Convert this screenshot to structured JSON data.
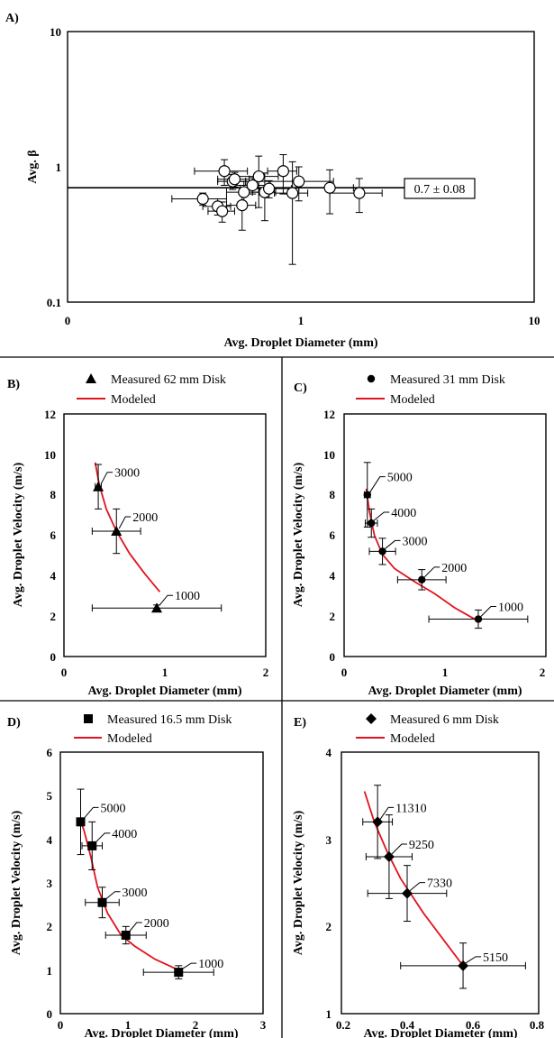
{
  "panels": [
    {
      "id": "A",
      "letter": "A)",
      "xlabel": "Avg. Droplet Diameter (mm)",
      "ylabel": "Avg. β",
      "xticklabels": [
        "0",
        "1",
        "10"
      ],
      "yticklabels": [
        "10",
        "1",
        "0.1"
      ],
      "fit_label": "0.7 ± 0.08"
    },
    {
      "id": "B",
      "letter": "B)",
      "xlabel": "Avg. Droplet Diameter (mm)",
      "ylabel": "Avg. Droplet Velocity (m/s)",
      "xticklabels": [
        "0",
        "1",
        "2"
      ],
      "yticklabels": [
        "0",
        "2",
        "4",
        "6",
        "8",
        "10",
        "12"
      ],
      "legend_measured": "Measured 62 mm Disk",
      "legend_model": "Modeled",
      "point_labels": [
        "3000",
        "2000",
        "1000"
      ]
    },
    {
      "id": "C",
      "letter": "C)",
      "xlabel": "Avg. Droplet Diameter (mm)",
      "ylabel": "Avg. Droplet Velocity (m/s)",
      "xticklabels": [
        "0",
        "1",
        "2"
      ],
      "yticklabels": [
        "0",
        "2",
        "4",
        "6",
        "8",
        "10",
        "12"
      ],
      "legend_measured": "Measured 31 mm Disk",
      "legend_model": "Modeled",
      "point_labels": [
        "5000",
        "4000",
        "3000",
        "2000",
        "1000"
      ]
    },
    {
      "id": "D",
      "letter": "D)",
      "xlabel": "Avg. Droplet Diameter (mm)",
      "ylabel": "Avg. Droplet Velocity (m/s)",
      "xticklabels": [
        "0",
        "1",
        "2",
        "3"
      ],
      "yticklabels": [
        "0",
        "1",
        "2",
        "3",
        "4",
        "5",
        "6"
      ],
      "legend_measured": "Measured 16.5 mm Disk",
      "legend_model": "Modeled",
      "point_labels": [
        "5000",
        "4000",
        "3000",
        "2000",
        "1000"
      ]
    },
    {
      "id": "E",
      "letter": "E)",
      "xlabel": "Avg. Droplet Diameter (mm)",
      "ylabel": "Avg. Droplet Velocity (m/s)",
      "xticklabels": [
        "0.2",
        "0.4",
        "0.6",
        "0.8"
      ],
      "yticklabels": [
        "1",
        "2",
        "3",
        "4"
      ],
      "legend_measured": "Measured 6 mm Disk",
      "legend_model": "Modeled",
      "point_labels": [
        "11310",
        "9250",
        "7330",
        "5150"
      ]
    }
  ],
  "colors": {
    "model_line": "#e0141e",
    "ink": "#000000",
    "face": "#ffffff"
  },
  "chart_data": [
    {
      "panel": "A",
      "type": "scatter",
      "xscale": "log",
      "yscale": "log",
      "xlim": [
        0.1,
        10
      ],
      "ylim": [
        0.1,
        10
      ],
      "grid": false,
      "marker": "open-circle",
      "points": [
        {
          "x": 0.38,
          "y": 0.58,
          "xerr": 0.1,
          "yerr": 0.06
        },
        {
          "x": 0.44,
          "y": 0.51,
          "xerr": 0.06,
          "yerr": 0.07
        },
        {
          "x": 0.46,
          "y": 0.47,
          "xerr": 0.06,
          "yerr": 0.08
        },
        {
          "x": 0.47,
          "y": 0.93,
          "xerr": 0.12,
          "yerr": 0.2
        },
        {
          "x": 0.51,
          "y": 0.78,
          "xerr": 0.07,
          "yerr": 0.1
        },
        {
          "x": 0.52,
          "y": 0.81,
          "xerr": 0.08,
          "yerr": 0.1
        },
        {
          "x": 0.56,
          "y": 0.52,
          "xerr": 0.08,
          "yerr": 0.18
        },
        {
          "x": 0.57,
          "y": 0.65,
          "xerr": 0.09,
          "yerr": 0.13
        },
        {
          "x": 0.62,
          "y": 0.73,
          "xerr": 0.12,
          "yerr": 0.1
        },
        {
          "x": 0.66,
          "y": 0.85,
          "xerr": 0.14,
          "yerr": 0.35
        },
        {
          "x": 0.7,
          "y": 0.65,
          "xerr": 0.08,
          "yerr": 0.25
        },
        {
          "x": 0.73,
          "y": 0.69,
          "xerr": 0.18,
          "yerr": 0.1
        },
        {
          "x": 0.84,
          "y": 0.93,
          "xerr": 0.12,
          "yerr": 0.3
        },
        {
          "x": 0.92,
          "y": 0.64,
          "xerr": 0.15,
          "yerr": 0.45
        },
        {
          "x": 0.98,
          "y": 0.78,
          "xerr": 0.4,
          "yerr": 0.22
        },
        {
          "x": 1.33,
          "y": 0.7,
          "xerr": 0.35,
          "yerr": 0.25
        },
        {
          "x": 1.78,
          "y": 0.64,
          "xerr": 0.45,
          "yerr": 0.18
        }
      ],
      "fit": {
        "value": 0.7,
        "x_from": 0.1,
        "x_to": 3.3
      }
    },
    {
      "panel": "B",
      "type": "scatter",
      "xlim": [
        0,
        2
      ],
      "ylim": [
        0,
        12
      ],
      "grid": false,
      "marker": "filled-triangle",
      "series": [
        {
          "name": "Measured 62 mm Disk",
          "points": [
            {
              "x": 0.34,
              "y": 8.4,
              "xerr": 0.03,
              "yerr": 1.1
            },
            {
              "x": 0.52,
              "y": 6.2,
              "xerr": 0.24,
              "yerr": 1.1
            },
            {
              "x": 0.92,
              "y": 2.4,
              "xerr": 0.64,
              "yerr": 0.15
            }
          ]
        },
        {
          "name": "Modeled",
          "line": [
            [
              0.31,
              9.6
            ],
            [
              0.35,
              8.5
            ],
            [
              0.42,
              7.3
            ],
            [
              0.52,
              6.2
            ],
            [
              0.65,
              5.1
            ],
            [
              0.8,
              4.1
            ],
            [
              0.95,
              3.2
            ]
          ]
        }
      ],
      "labels": [
        "3000",
        "2000",
        "1000"
      ]
    },
    {
      "panel": "C",
      "type": "scatter",
      "xlim": [
        0,
        2
      ],
      "ylim": [
        0,
        12
      ],
      "grid": false,
      "marker": "filled-circle",
      "series": [
        {
          "name": "Measured 31 mm Disk",
          "points": [
            {
              "x": 0.23,
              "y": 8.0,
              "xerr": 0.03,
              "yerr": 1.6
            },
            {
              "x": 0.27,
              "y": 6.6,
              "xerr": 0.06,
              "yerr": 0.7
            },
            {
              "x": 0.38,
              "y": 5.2,
              "xerr": 0.13,
              "yerr": 0.65
            },
            {
              "x": 0.77,
              "y": 3.8,
              "xerr": 0.24,
              "yerr": 0.5
            },
            {
              "x": 1.33,
              "y": 1.85,
              "xerr": 0.49,
              "yerr": 0.45
            }
          ]
        },
        {
          "name": "Modeled",
          "line": [
            [
              0.22,
              8.3
            ],
            [
              0.25,
              7.2
            ],
            [
              0.3,
              6.0
            ],
            [
              0.38,
              5.05
            ],
            [
              0.5,
              4.35
            ],
            [
              0.7,
              3.7
            ],
            [
              0.9,
              3.1
            ],
            [
              1.1,
              2.4
            ],
            [
              1.33,
              1.75
            ]
          ]
        }
      ],
      "labels": [
        "5000",
        "4000",
        "3000",
        "2000",
        "1000"
      ]
    },
    {
      "panel": "D",
      "type": "scatter",
      "xlim": [
        0,
        3
      ],
      "ylim": [
        0,
        6
      ],
      "grid": false,
      "marker": "filled-square",
      "series": [
        {
          "name": "Measured 16.5 mm Disk",
          "points": [
            {
              "x": 0.3,
              "y": 4.4,
              "xerr": 0.06,
              "yerr": 0.75
            },
            {
              "x": 0.47,
              "y": 3.85,
              "xerr": 0.15,
              "yerr": 0.55
            },
            {
              "x": 0.62,
              "y": 2.55,
              "xerr": 0.25,
              "yerr": 0.35
            },
            {
              "x": 0.97,
              "y": 1.8,
              "xerr": 0.3,
              "yerr": 0.2
            },
            {
              "x": 1.75,
              "y": 0.95,
              "xerr": 0.52,
              "yerr": 0.15
            }
          ]
        },
        {
          "name": "Modeled",
          "line": [
            [
              0.28,
              4.5
            ],
            [
              0.35,
              4.2
            ],
            [
              0.45,
              3.6
            ],
            [
              0.55,
              2.9
            ],
            [
              0.7,
              2.3
            ],
            [
              0.9,
              1.8
            ],
            [
              1.1,
              1.55
            ],
            [
              1.4,
              1.25
            ],
            [
              1.75,
              1.0
            ]
          ]
        }
      ],
      "labels": [
        "5000",
        "4000",
        "3000",
        "2000",
        "1000"
      ]
    },
    {
      "panel": "E",
      "type": "scatter",
      "xlim": [
        0.2,
        0.8
      ],
      "ylim": [
        1,
        4
      ],
      "grid": false,
      "marker": "filled-diamond",
      "series": [
        {
          "name": "Measured 6 mm Disk",
          "points": [
            {
              "x": 0.31,
              "y": 3.2,
              "xerr": 0.045,
              "yerr": 0.42
            },
            {
              "x": 0.345,
              "y": 2.8,
              "xerr": 0.07,
              "yerr": 0.48
            },
            {
              "x": 0.4,
              "y": 2.38,
              "xerr": 0.12,
              "yerr": 0.32
            },
            {
              "x": 0.57,
              "y": 1.55,
              "xerr": 0.19,
              "yerr": 0.26
            }
          ]
        },
        {
          "name": "Modeled",
          "line": [
            [
              0.27,
              3.55
            ],
            [
              0.3,
              3.2
            ],
            [
              0.34,
              2.85
            ],
            [
              0.38,
              2.55
            ],
            [
              0.45,
              2.15
            ],
            [
              0.52,
              1.8
            ],
            [
              0.57,
              1.55
            ]
          ]
        }
      ],
      "labels": [
        "11310",
        "9250",
        "7330",
        "5150"
      ]
    }
  ]
}
